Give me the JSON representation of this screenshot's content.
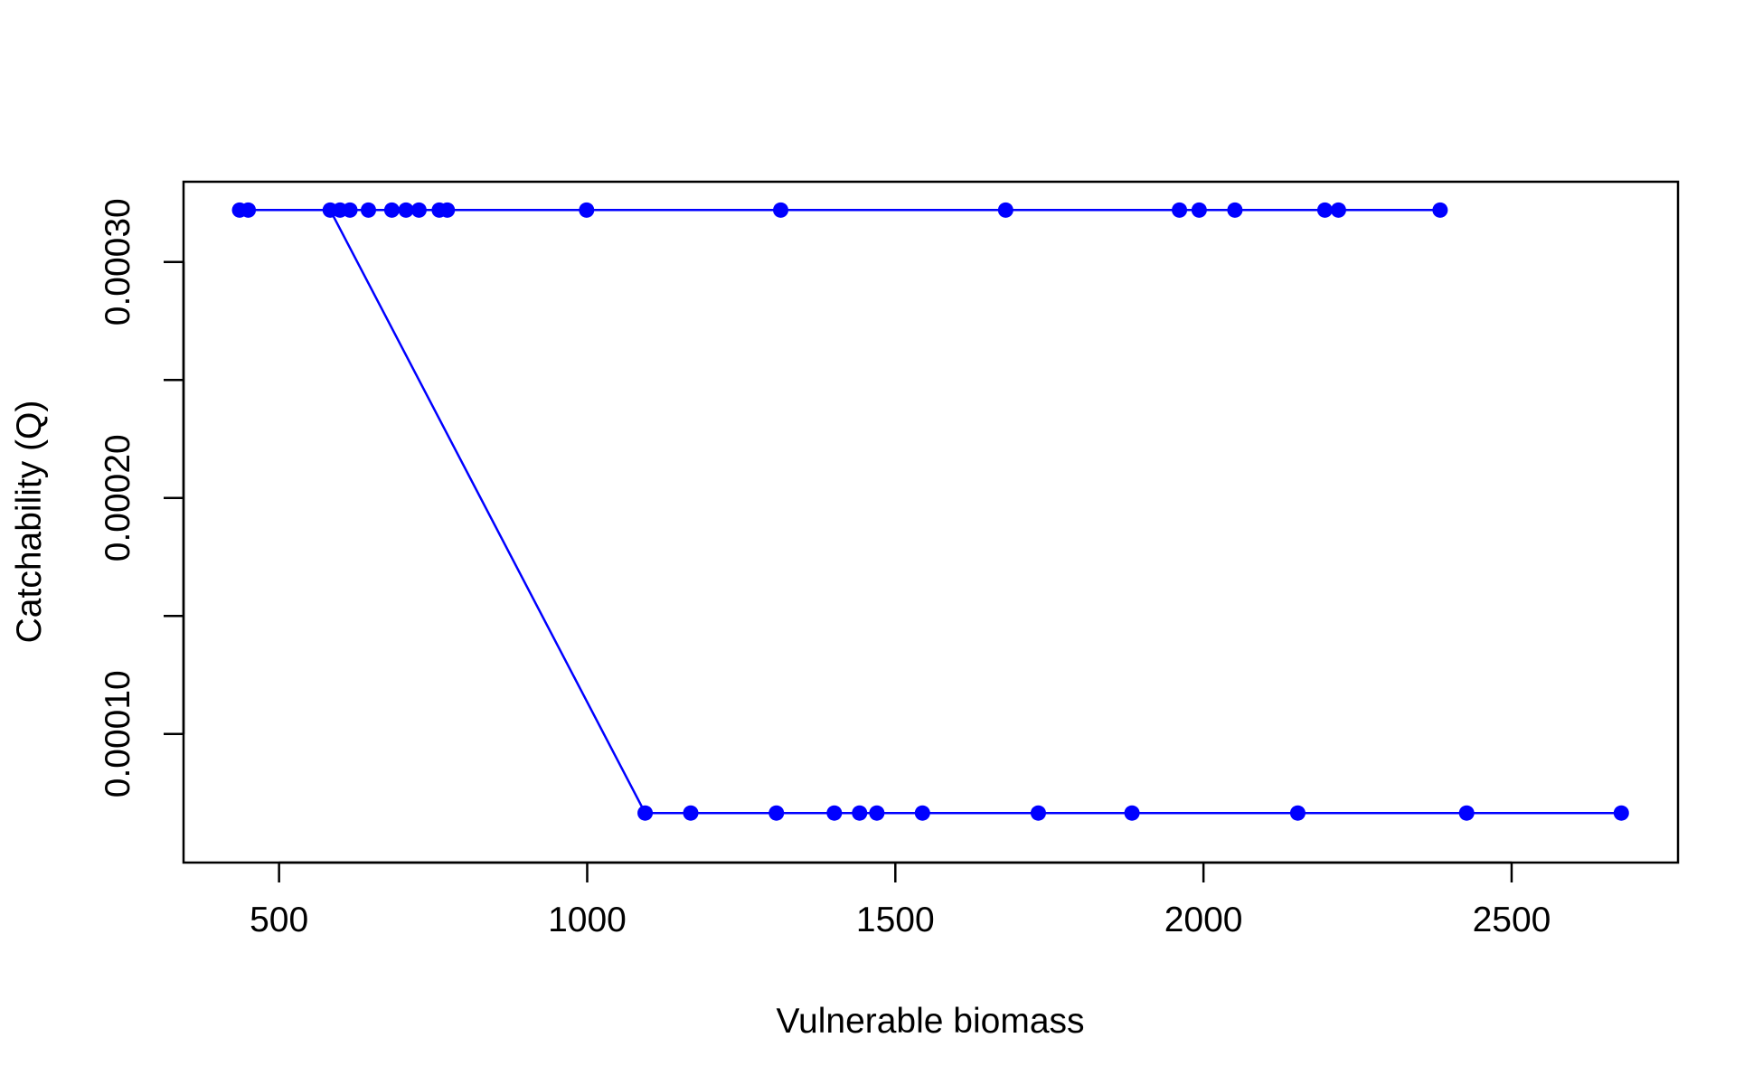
{
  "chart_data": {
    "type": "line",
    "title": "",
    "xlabel": "Vulnerable biomass",
    "ylabel": "Catchability (Q)",
    "xlim": [
      345,
      2770
    ],
    "ylim": [
      4.55e-05,
      0.000334
    ],
    "x_ticks": [
      500,
      1000,
      1500,
      2000,
      2500
    ],
    "x_tick_labels": [
      "500",
      "1000",
      "1500",
      "2000",
      "2500"
    ],
    "y_ticks": [
      0.0001,
      0.00015,
      0.0002,
      0.00025,
      0.0003
    ],
    "y_tick_labels": [
      "0.00010",
      "",
      "0.00020",
      "",
      "0.00030"
    ],
    "grid": false,
    "legend": "none",
    "color": "#0000ff",
    "series": [
      {
        "x": [
          436,
          450,
          583,
          599,
          615,
          645,
          683,
          706,
          727,
          760,
          773,
          999,
          1314,
          1679,
          1961,
          1993,
          2051,
          2197,
          2219,
          2384,
          583,
          1094,
          1168,
          1307,
          1401,
          1442,
          1470,
          1544,
          1732,
          1884,
          2153,
          2427,
          2678
        ],
        "y": [
          0.000322,
          0.000322,
          0.000322,
          0.000322,
          0.000322,
          0.000322,
          0.000322,
          0.000322,
          0.000322,
          0.000322,
          0.000322,
          0.000322,
          0.000322,
          0.000322,
          0.000322,
          0.000322,
          0.000322,
          0.000322,
          0.000322,
          0.000322,
          0.000322,
          6.65e-05,
          6.65e-05,
          6.65e-05,
          6.65e-05,
          6.65e-05,
          6.65e-05,
          6.65e-05,
          6.65e-05,
          6.65e-05,
          6.65e-05,
          6.65e-05,
          6.65e-05
        ],
        "points": [
          true,
          true,
          true,
          true,
          true,
          true,
          true,
          true,
          true,
          true,
          true,
          true,
          true,
          true,
          true,
          true,
          true,
          true,
          true,
          true,
          false,
          true,
          true,
          true,
          true,
          true,
          true,
          true,
          true,
          true,
          true,
          true,
          true
        ]
      }
    ]
  }
}
